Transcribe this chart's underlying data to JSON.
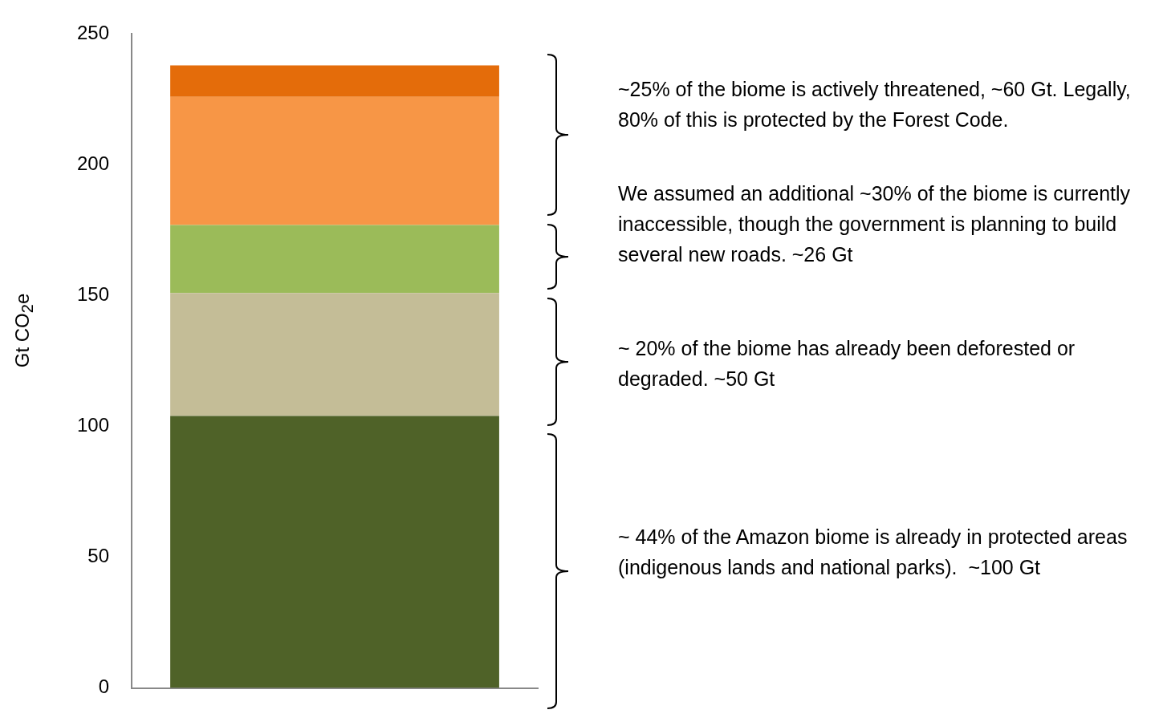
{
  "chart_data": {
    "type": "bar",
    "ylabel": "Gt CO$_{2}$e",
    "categories": [
      null
    ],
    "stacked": true,
    "ylim": [
      0,
      250
    ],
    "yticks": [
      0,
      50,
      100,
      150,
      200,
      250
    ],
    "grid": false,
    "series": [
      {
        "color": "#4f6228",
        "values": [
          104
        ]
      },
      {
        "color": "#c4bd97",
        "values": [
          47
        ]
      },
      {
        "color": "#9bbb59",
        "values": [
          26
        ]
      },
      {
        "color": "#f79646",
        "values": [
          49
        ]
      },
      {
        "color": "#e46c0a",
        "values": [
          12
        ]
      }
    ],
    "annotations": [
      "~25% of the biome is actively threatened, ~60 Gt. Legally, 80% of this is protected by the Forest Code.",
      "We assumed an additional ~30% of the biome is currently inaccessible, though the government is planning to build several new roads. ~26 Gt",
      "~ 20% of the biome has already been deforested or degraded. ~50 Gt",
      "~ 44% of the Amazon biome is already in protected areas (indigenous lands and national parks).  ~100 Gt"
    ]
  }
}
